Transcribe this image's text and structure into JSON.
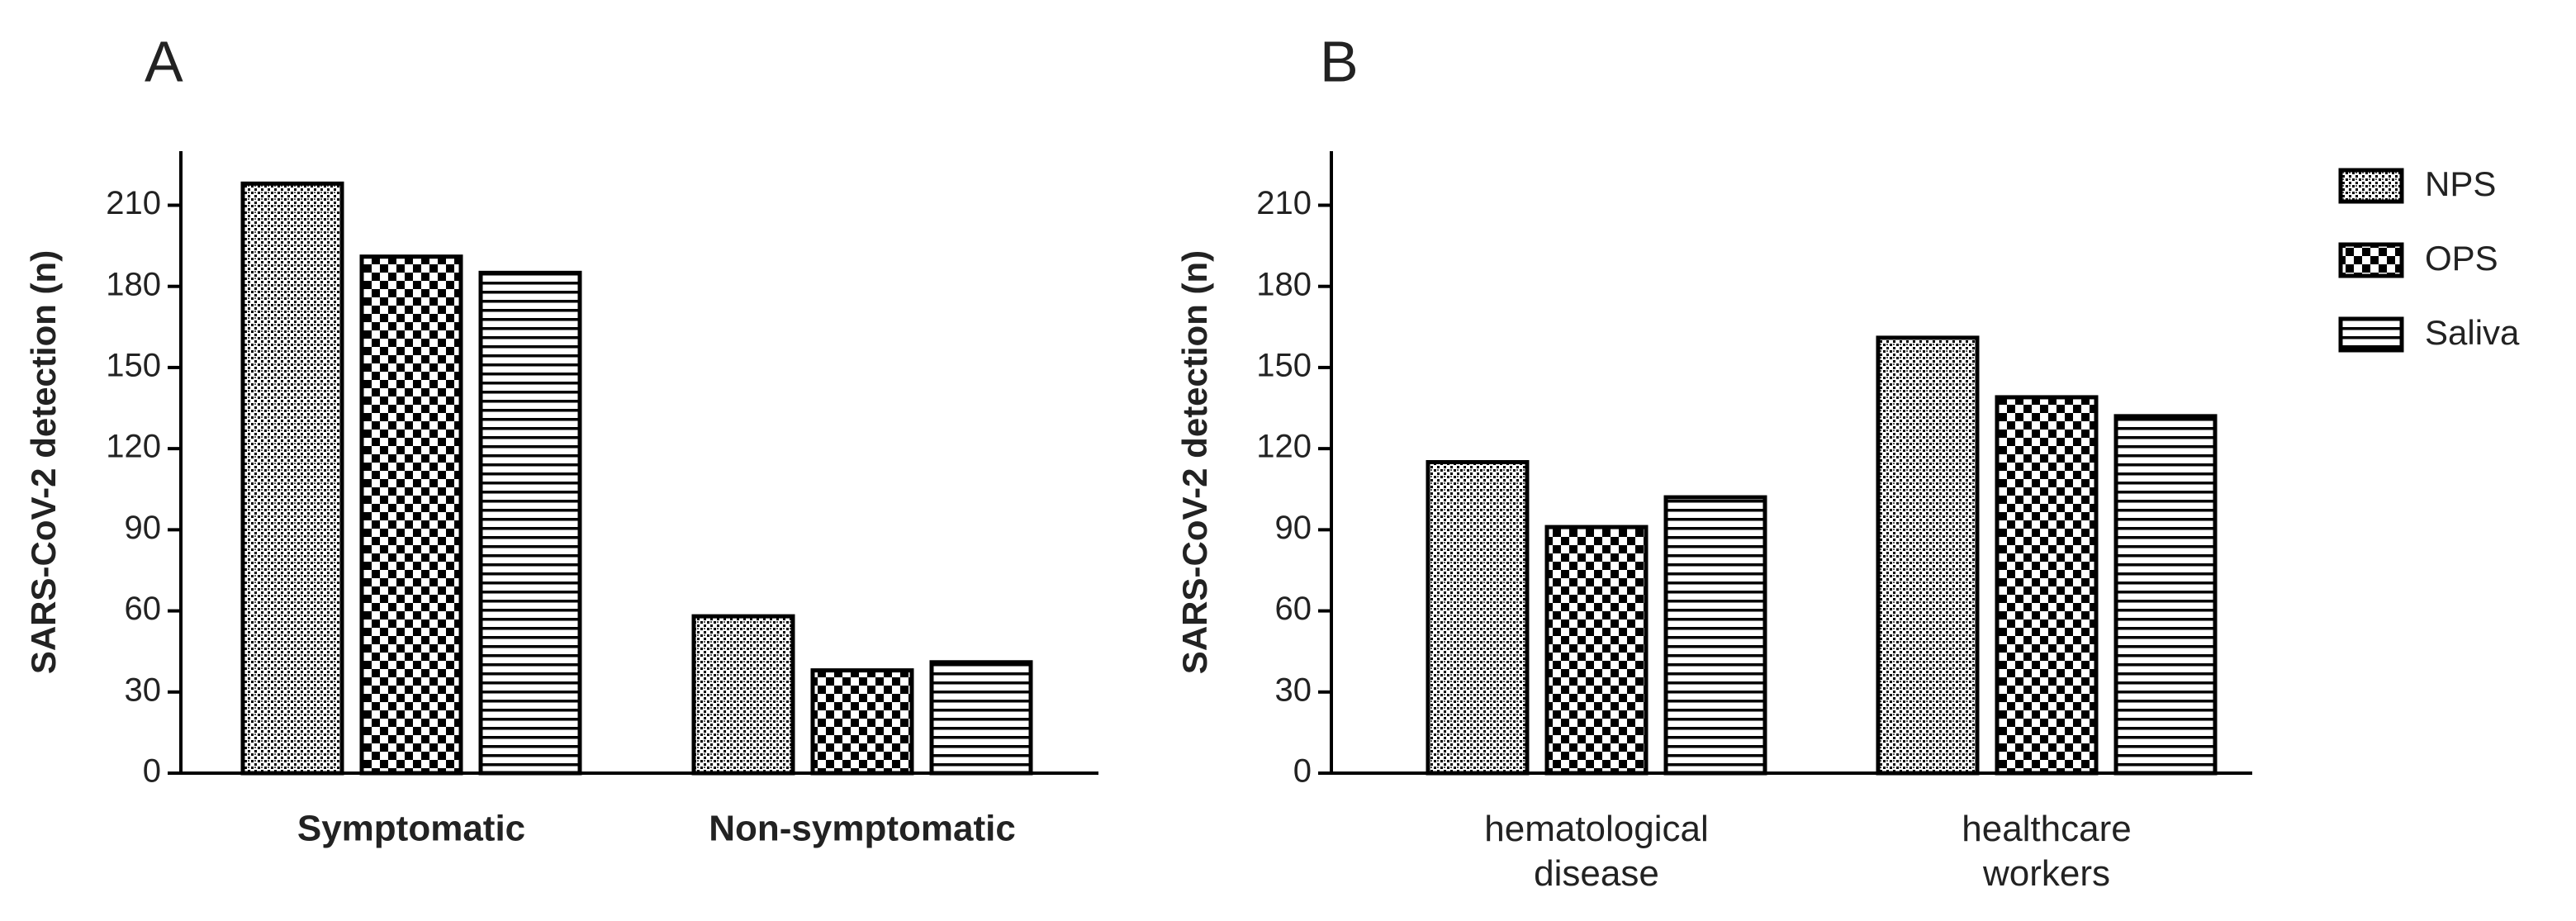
{
  "chart_data": [
    {
      "type": "bar",
      "panel": "A",
      "ylabel": "SARS-CoV-2 detection (n)",
      "categories": [
        "Symptomatic",
        "Non-symptomatic"
      ],
      "category_weight": "bold",
      "series": [
        {
          "name": "NPS",
          "color": "#000000",
          "pattern": "dots",
          "values": [
            218,
            58
          ]
        },
        {
          "name": "OPS",
          "color": "#000000",
          "pattern": "checker",
          "values": [
            191,
            38
          ]
        },
        {
          "name": "Saliva",
          "color": "#000000",
          "pattern": "hlines",
          "values": [
            185,
            41
          ]
        }
      ],
      "ylim": [
        0,
        230
      ],
      "yticks": [
        0,
        30,
        60,
        90,
        120,
        150,
        180,
        210
      ],
      "legend": false
    },
    {
      "type": "bar",
      "panel": "B",
      "ylabel": "SARS-CoV-2 detection (n)",
      "categories": [
        "hematological disease",
        "healthcare workers"
      ],
      "category_weight": "normal",
      "series": [
        {
          "name": "NPS",
          "color": "#000000",
          "pattern": "dots",
          "values": [
            115,
            161
          ]
        },
        {
          "name": "OPS",
          "color": "#000000",
          "pattern": "checker",
          "values": [
            91,
            139
          ]
        },
        {
          "name": "Saliva",
          "color": "#000000",
          "pattern": "hlines",
          "values": [
            102,
            132
          ]
        }
      ],
      "ylim": [
        0,
        230
      ],
      "yticks": [
        0,
        30,
        60,
        90,
        120,
        150,
        180,
        210
      ],
      "legend": "top-right"
    }
  ]
}
